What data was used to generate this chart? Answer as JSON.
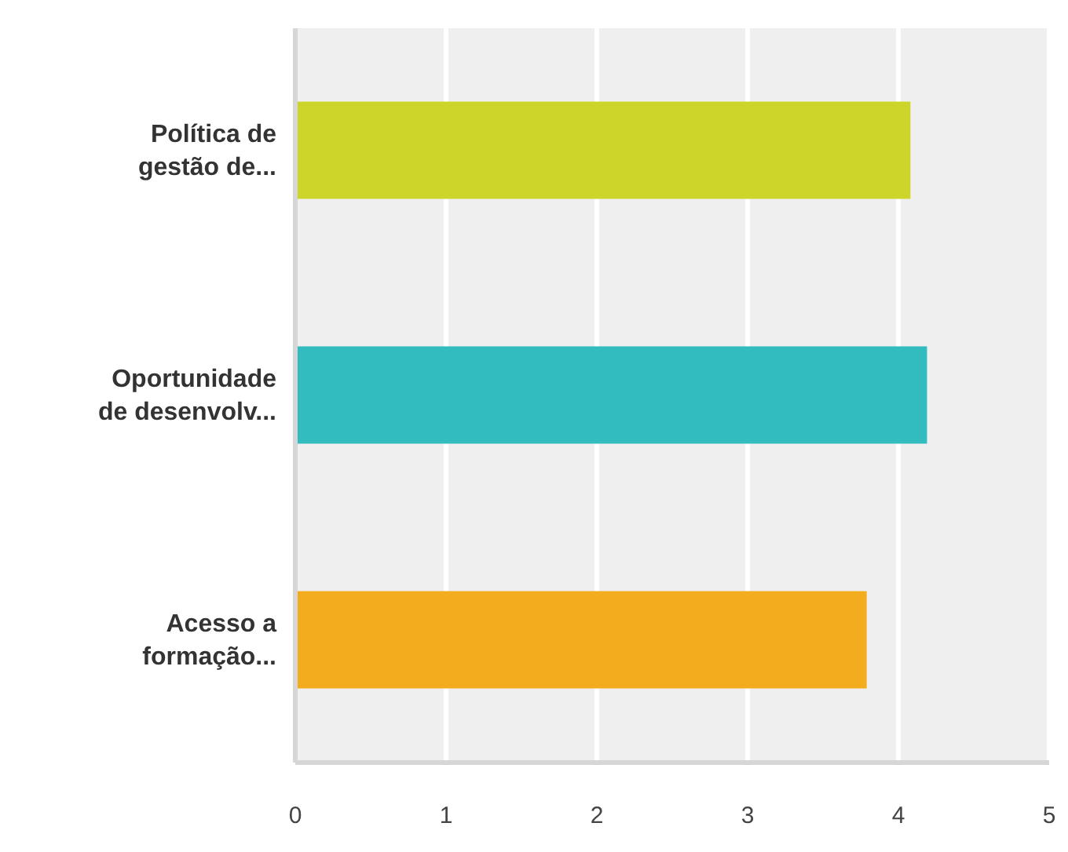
{
  "chart_data": {
    "type": "bar",
    "orientation": "horizontal",
    "categories": [
      "Política de gestão de...",
      "Oportunidade de desenvolv...",
      "Acesso a formação..."
    ],
    "values": [
      4.08,
      4.19,
      3.79
    ],
    "colors": [
      "#cdd52a",
      "#33bcbf",
      "#f4ac1f"
    ],
    "xlim": [
      0,
      5
    ],
    "xticks": [
      0,
      1,
      2,
      3,
      4,
      5
    ],
    "grid": "x"
  }
}
